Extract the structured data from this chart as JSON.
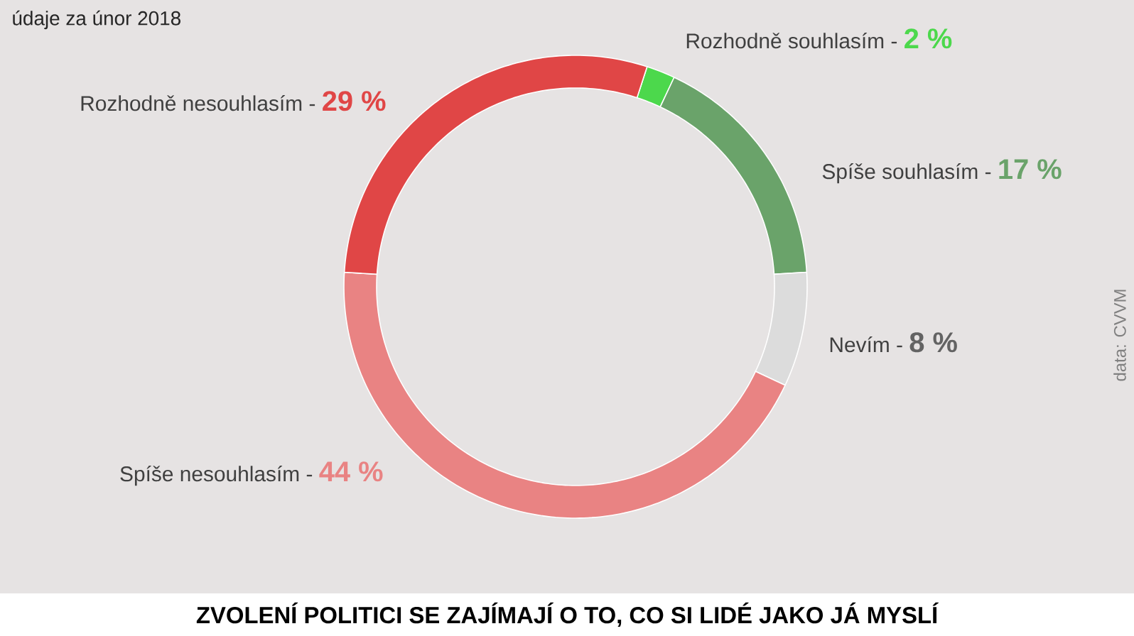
{
  "chart_data": {
    "type": "donut",
    "title": "ZVOLENÍ POLITICI SE ZAJÍMAJÍ O TO, CO SI LIDÉ JAKO JÁ MYSLÍ",
    "subtitle": "údaje za únor 2018",
    "categories": [
      "Rozhodně souhlasím -",
      "Spíše souhlasím -",
      "Nevím -",
      "Spíše nesouhlasím -",
      "Rozhodně nesouhlasím -"
    ],
    "values": [
      2,
      17,
      8,
      44,
      29
    ],
    "value_labels": [
      "2 %",
      "17 %",
      "8 %",
      "44 %",
      "29 %"
    ],
    "colors": [
      "#4cd84c",
      "#6aa36a",
      "#dcdcdc",
      "#e98383",
      "#e04646"
    ],
    "annotations": [
      "data: CVVM"
    ]
  }
}
